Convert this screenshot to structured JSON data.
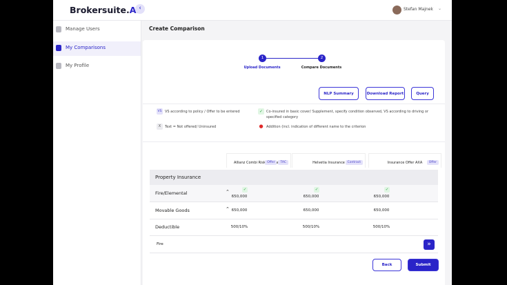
{
  "header": {
    "logo_main": "Brokersuite.",
    "logo_accent": "AI",
    "user_name": "Stefan Majnek"
  },
  "sidebar": {
    "items": [
      "Manage Users",
      "My Comparisons",
      "My Profile"
    ]
  },
  "page": {
    "title": "Create Comparison"
  },
  "stepper": {
    "steps": [
      {
        "number": "1",
        "label": "Upload Documents"
      },
      {
        "number": "2",
        "label": "Compare Documents"
      }
    ]
  },
  "actions": [
    "NLP Summary",
    "Download Report",
    "Query"
  ],
  "legend": [
    {
      "symbol": "VS",
      "text": "VS according to policy / Offer to be entered"
    },
    {
      "symbol": "✓",
      "text": "Co-insured in basic cover/ Supplement, specify condition observed, VS according to driving or specified category"
    },
    {
      "symbol": "X",
      "text": "Text = Not offered/ Uninsured"
    },
    {
      "symbol": "●",
      "text": "Addition (incl. indication of different name to the criterion"
    }
  ],
  "insurers": [
    {
      "name": "Allianz Combi Risk Insurance",
      "tags": [
        "Offer",
        "TAC"
      ]
    },
    {
      "name": "Helvetia Insurance",
      "tags": [
        "Contract"
      ]
    },
    {
      "name": "Insurance Offer AXA",
      "tags": [
        "Offer"
      ]
    }
  ],
  "table": {
    "section": "Property Insurance",
    "rows": [
      {
        "label": "Fire/Elemental",
        "cells": [
          "650,000",
          "650,000",
          "650,000"
        ]
      },
      {
        "label": "Movable Goods",
        "cells": [
          "650,000",
          "650,000",
          "650,000"
        ]
      },
      {
        "label": "Deductible",
        "cells": [
          "500/10%",
          "500/10%",
          "500/10%"
        ]
      }
    ]
  },
  "footer": {
    "fire_label": "Fire",
    "back": "Back",
    "submit": "Submit"
  }
}
